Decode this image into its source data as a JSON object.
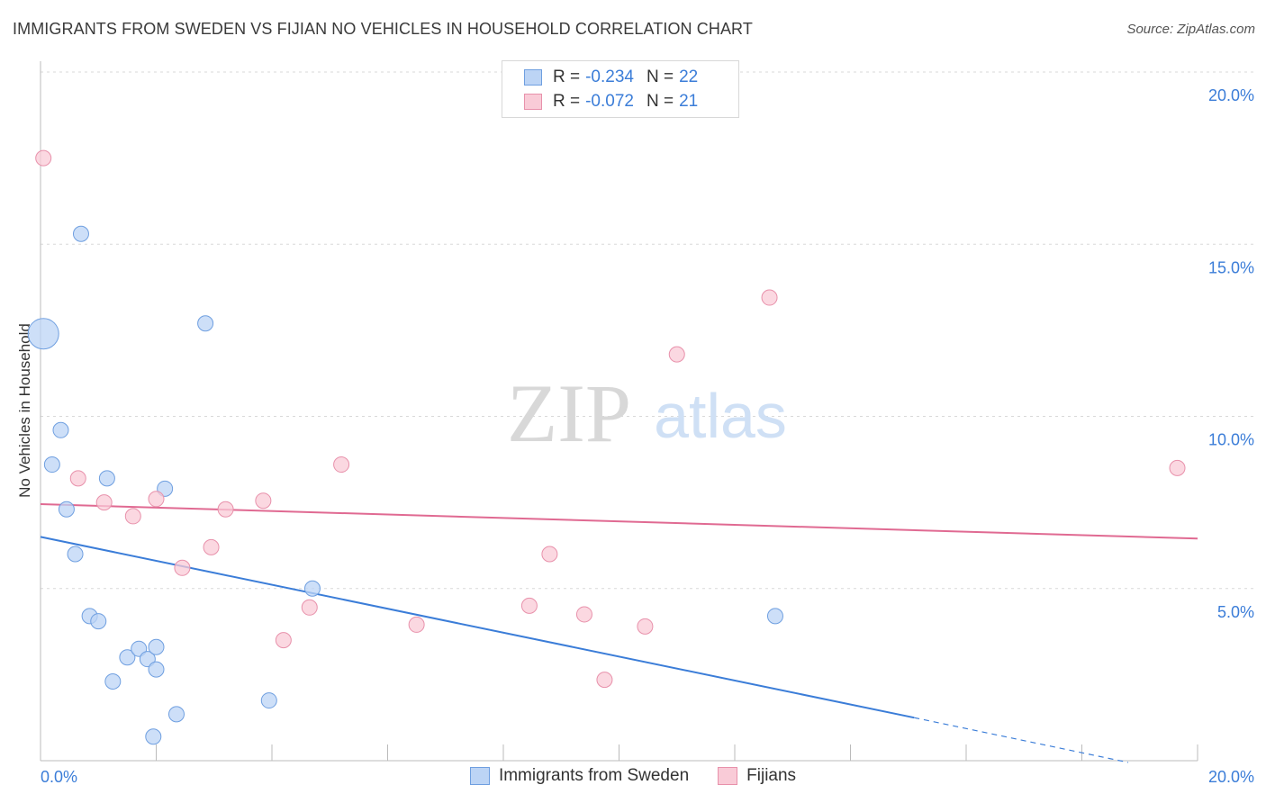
{
  "header": {
    "title": "IMMIGRANTS FROM SWEDEN VS FIJIAN NO VEHICLES IN HOUSEHOLD CORRELATION CHART",
    "source": "Source: ZipAtlas.com"
  },
  "stats": {
    "rows": [
      {
        "r_label": "R = ",
        "r_value": "-0.234",
        "n_label": "N = ",
        "n_value": "22",
        "fill": "#bcd4f5",
        "stroke": "#6f9fe0"
      },
      {
        "r_label": "R = ",
        "r_value": "-0.072",
        "n_label": "N = ",
        "n_value": "21",
        "fill": "#f9cbd7",
        "stroke": "#e891ab"
      }
    ]
  },
  "watermark": {
    "zip": "ZIP",
    "atlas": "atlas"
  },
  "legend": {
    "items": [
      {
        "label": "Immigrants from Sweden",
        "fill": "#bcd4f5",
        "stroke": "#6f9fe0"
      },
      {
        "label": "Fijians",
        "fill": "#f9cbd7",
        "stroke": "#e891ab"
      }
    ]
  },
  "chart_data": {
    "type": "scatter",
    "title": "IMMIGRANTS FROM SWEDEN VS FIJIAN NO VEHICLES IN HOUSEHOLD CORRELATION CHART",
    "xlabel": "",
    "ylabel": "No Vehicles in Household",
    "xlim": [
      0,
      20
    ],
    "ylim": [
      0,
      20
    ],
    "x_tick_labels": [
      "0.0%",
      "20.0%"
    ],
    "y_ticks": [
      {
        "value": 5,
        "label": "5.0%"
      },
      {
        "value": 10,
        "label": "10.0%"
      },
      {
        "value": 15,
        "label": "15.0%"
      },
      {
        "value": 20,
        "label": "20.0%"
      }
    ],
    "series": [
      {
        "name": "Immigrants from Sweden",
        "color": "#3b7dd8",
        "fill": "#bcd4f5",
        "stroke": "#6f9fe0",
        "points": [
          {
            "x": 0.05,
            "y": 12.4,
            "size": "large"
          },
          {
            "x": 0.7,
            "y": 15.3
          },
          {
            "x": 0.35,
            "y": 9.6
          },
          {
            "x": 0.2,
            "y": 8.6
          },
          {
            "x": 0.45,
            "y": 7.3
          },
          {
            "x": 1.15,
            "y": 8.2
          },
          {
            "x": 2.15,
            "y": 7.9
          },
          {
            "x": 2.85,
            "y": 12.7
          },
          {
            "x": 0.6,
            "y": 6.0
          },
          {
            "x": 0.85,
            "y": 4.2
          },
          {
            "x": 1.0,
            "y": 4.05
          },
          {
            "x": 1.5,
            "y": 3.0
          },
          {
            "x": 1.7,
            "y": 3.25
          },
          {
            "x": 1.85,
            "y": 2.95
          },
          {
            "x": 2.0,
            "y": 2.65
          },
          {
            "x": 2.0,
            "y": 3.3
          },
          {
            "x": 1.25,
            "y": 2.3
          },
          {
            "x": 2.35,
            "y": 1.35
          },
          {
            "x": 1.95,
            "y": 0.7
          },
          {
            "x": 3.95,
            "y": 1.75
          },
          {
            "x": 4.7,
            "y": 5.0
          },
          {
            "x": 12.7,
            "y": 4.2
          }
        ],
        "trend": {
          "x0": 0,
          "y0": 6.5,
          "x1": 15.1,
          "y1": 1.25,
          "dash_to_x": 18.8,
          "dash_to_y": -0.05
        }
      },
      {
        "name": "Fijians",
        "color": "#e06a92",
        "fill": "#f9cbd7",
        "stroke": "#e891ab",
        "points": [
          {
            "x": 0.05,
            "y": 17.5
          },
          {
            "x": 0.65,
            "y": 8.2
          },
          {
            "x": 1.1,
            "y": 7.5
          },
          {
            "x": 1.6,
            "y": 7.1
          },
          {
            "x": 2.0,
            "y": 7.6
          },
          {
            "x": 2.45,
            "y": 5.6
          },
          {
            "x": 2.95,
            "y": 6.2
          },
          {
            "x": 3.2,
            "y": 7.3
          },
          {
            "x": 3.85,
            "y": 7.55
          },
          {
            "x": 4.2,
            "y": 3.5
          },
          {
            "x": 4.65,
            "y": 4.45
          },
          {
            "x": 5.2,
            "y": 8.6
          },
          {
            "x": 6.5,
            "y": 3.95
          },
          {
            "x": 8.45,
            "y": 4.5
          },
          {
            "x": 8.8,
            "y": 6.0
          },
          {
            "x": 9.4,
            "y": 4.25
          },
          {
            "x": 9.75,
            "y": 2.35
          },
          {
            "x": 10.45,
            "y": 3.9
          },
          {
            "x": 11.0,
            "y": 11.8
          },
          {
            "x": 12.6,
            "y": 13.45
          },
          {
            "x": 19.65,
            "y": 8.5
          }
        ],
        "trend": {
          "x0": 0,
          "y0": 7.45,
          "x1": 20.0,
          "y1": 6.45
        }
      }
    ]
  }
}
